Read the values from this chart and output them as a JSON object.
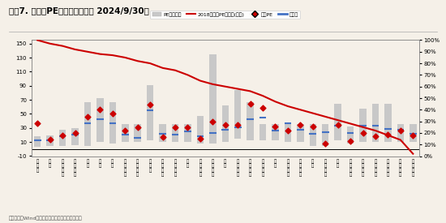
{
  "title": "图表7. 各行业PE估值分布（截至 2024/9/30）",
  "footnote": "资料来源：Wind，兴业证券经济与金融研究院整理",
  "categories": [
    "房\n地\n产",
    "煤\n炭",
    "非\n银\n金\n融",
    "建\n筑\n材\n料",
    "综\n合",
    "电\n子",
    "钢\n铁",
    "商\n贸\n零\n售",
    "基\n础\n化\n工",
    "计\n算\n机",
    "石\n油\n石\n化",
    "机\n械\n设\n备",
    "环\n保",
    "农\n林\n牧\n渔",
    "交\n通\n运\n输",
    "传\n媒",
    "国\n防\n军\n工",
    "医\n药\n生\n物",
    "家\n用\n电\n器",
    "汽\n车",
    "电\n力\n设\n备",
    "美\n容\n护\n理",
    "银\n行",
    "经\n工\n制\n造",
    "通\n信",
    "建\n筑\n装\n饰",
    "有\n色\n金\n属",
    "公\n用\n事\n业",
    "食\n品\n饮\n料",
    "纺\n织\n服\n饰",
    "社\n会\n服\n务"
  ],
  "bar_bottom": [
    3,
    4,
    5,
    6,
    5,
    10,
    8,
    10,
    10,
    12,
    10,
    10,
    10,
    8,
    8,
    10,
    15,
    12,
    12,
    12,
    10,
    10,
    4,
    5,
    12,
    8,
    10,
    10,
    10,
    10,
    10
  ],
  "bar_top": [
    18,
    20,
    27,
    30,
    67,
    72,
    67,
    36,
    36,
    91,
    36,
    36,
    36,
    47,
    135,
    62,
    84,
    67,
    36,
    36,
    36,
    36,
    36,
    36,
    64,
    32,
    57,
    64,
    64,
    36,
    36
  ],
  "current_pe": [
    37,
    14,
    19,
    23,
    46,
    56,
    51,
    26,
    31,
    63,
    17,
    31,
    31,
    15,
    39,
    34,
    34,
    64,
    59,
    32,
    26,
    34,
    32,
    8,
    34,
    11,
    23,
    18,
    20,
    26,
    19
  ],
  "avg_pe": [
    12,
    13,
    18,
    21,
    37,
    43,
    37,
    21,
    16,
    55,
    22,
    21,
    25,
    18,
    23,
    28,
    31,
    43,
    45,
    26,
    37,
    27,
    22,
    24,
    33,
    23,
    33,
    33,
    29,
    27,
    22
  ],
  "pe_percentile": [
    100,
    97,
    95,
    92,
    90,
    88,
    87,
    85,
    82,
    80,
    76,
    74,
    70,
    65,
    62,
    60,
    58,
    56,
    52,
    47,
    43,
    40,
    37,
    34,
    31,
    28,
    25,
    22,
    18,
    14,
    2
  ],
  "ylim_left": [
    -10,
    155
  ],
  "ylim_right": [
    0,
    100
  ],
  "bar_color": "#c8c8c8",
  "line_color": "#cc0000",
  "current_pe_color": "#cc0000",
  "avg_color": "#4472c4",
  "background_color": "#f5f0e8",
  "legend_items": [
    "PE变动区间",
    "2018年以来PE分位数(右轴)",
    "当前PE",
    "平均值"
  ]
}
